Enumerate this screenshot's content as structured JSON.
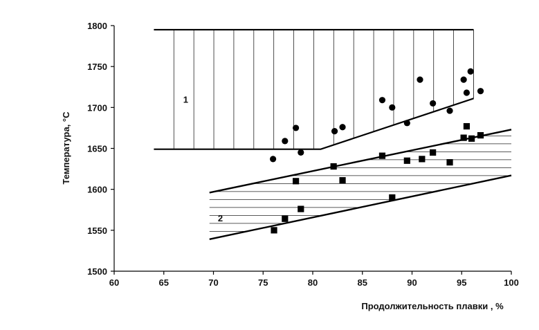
{
  "chart_data": {
    "type": "scatter",
    "title": "",
    "xlabel": "Продолжительность плавки ,  %",
    "ylabel": "Температура,  °С",
    "xlim": [
      60,
      100
    ],
    "ylim": [
      1500,
      1800
    ],
    "x_ticks": [
      60,
      65,
      70,
      75,
      80,
      85,
      90,
      95,
      100
    ],
    "y_ticks": [
      1500,
      1550,
      1600,
      1650,
      1700,
      1750,
      1800
    ],
    "grid": false,
    "legend": "none",
    "series": [
      {
        "marker": "circle",
        "points": [
          [
            76.0,
            1637
          ],
          [
            77.2,
            1659
          ],
          [
            78.3,
            1675
          ],
          [
            78.8,
            1645
          ],
          [
            82.2,
            1671
          ],
          [
            83.0,
            1676
          ],
          [
            87.0,
            1709
          ],
          [
            88.0,
            1700
          ],
          [
            89.5,
            1681
          ],
          [
            90.8,
            1734
          ],
          [
            92.1,
            1705
          ],
          [
            93.8,
            1696
          ],
          [
            95.2,
            1734
          ],
          [
            95.5,
            1718
          ],
          [
            95.9,
            1744
          ],
          [
            96.9,
            1720
          ]
        ]
      },
      {
        "marker": "square",
        "points": [
          [
            76.1,
            1550
          ],
          [
            77.2,
            1564
          ],
          [
            78.3,
            1610
          ],
          [
            78.8,
            1576
          ],
          [
            82.1,
            1628
          ],
          [
            83.0,
            1611
          ],
          [
            87.0,
            1641
          ],
          [
            88.0,
            1590
          ],
          [
            89.5,
            1635
          ],
          [
            91.0,
            1637
          ],
          [
            92.1,
            1645
          ],
          [
            93.8,
            1633
          ],
          [
            95.2,
            1663
          ],
          [
            95.5,
            1677
          ],
          [
            96.0,
            1662
          ],
          [
            96.9,
            1666
          ]
        ]
      }
    ],
    "regions": [
      {
        "label": "1",
        "label_at": [
          67.2,
          1710
        ],
        "hatch": "vertical",
        "boundary": [
          [
            64,
            1795
          ],
          [
            96.2,
            1795
          ],
          [
            96.2,
            1711
          ],
          [
            80.8,
            1649
          ],
          [
            64,
            1649
          ]
        ]
      },
      {
        "label": "2",
        "label_at": [
          70.7,
          1565
        ],
        "hatch": "horizontal",
        "upper_line": [
          [
            69.6,
            1596
          ],
          [
            100,
            1673
          ]
        ],
        "lower_line": [
          [
            69.6,
            1539
          ],
          [
            100,
            1617
          ]
        ]
      }
    ]
  }
}
